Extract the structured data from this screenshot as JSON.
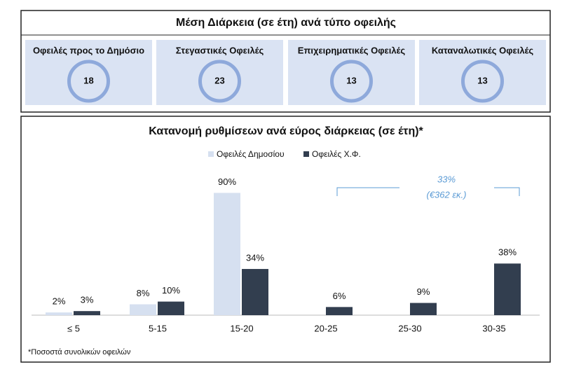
{
  "summary": {
    "title": "Μέση Διάρκεια (σε έτη) ανά τύπο οφειλής",
    "cards": [
      {
        "label": "Οφειλές προς το Δημόσιο",
        "value": 18
      },
      {
        "label": "Στεγαστικές Οφειλές",
        "value": 23
      },
      {
        "label": "Επιχειρηματικές Οφειλές",
        "value": 13
      },
      {
        "label": "Καταναλωτικές Οφειλές",
        "value": 13
      }
    ]
  },
  "chart_data": {
    "type": "bar",
    "title": "Κατανομή ρυθμίσεων ανά εύρος διάρκειας (σε έτη)*",
    "categories": [
      "≤ 5",
      "5-15",
      "15-20",
      "20-25",
      "25-30",
      "30-35"
    ],
    "series": [
      {
        "name": "Οφειλές Δημοσίου",
        "color": "#d6e0f0",
        "values": [
          2,
          8,
          90,
          null,
          null,
          null
        ],
        "value_labels": [
          "2%",
          "8%",
          "90%",
          null,
          null,
          null
        ]
      },
      {
        "name": "Οφειλές Χ.Φ.",
        "color": "#323e4f",
        "values": [
          3,
          10,
          34,
          6,
          9,
          38
        ],
        "value_labels": [
          "3%",
          "10%",
          "34%",
          "6%",
          "9%",
          "38%"
        ]
      }
    ],
    "annotation": [
      "33%",
      "(€362 εκ.)"
    ],
    "footnote": "*Ποσοστά συνολικών οφειλών"
  }
}
